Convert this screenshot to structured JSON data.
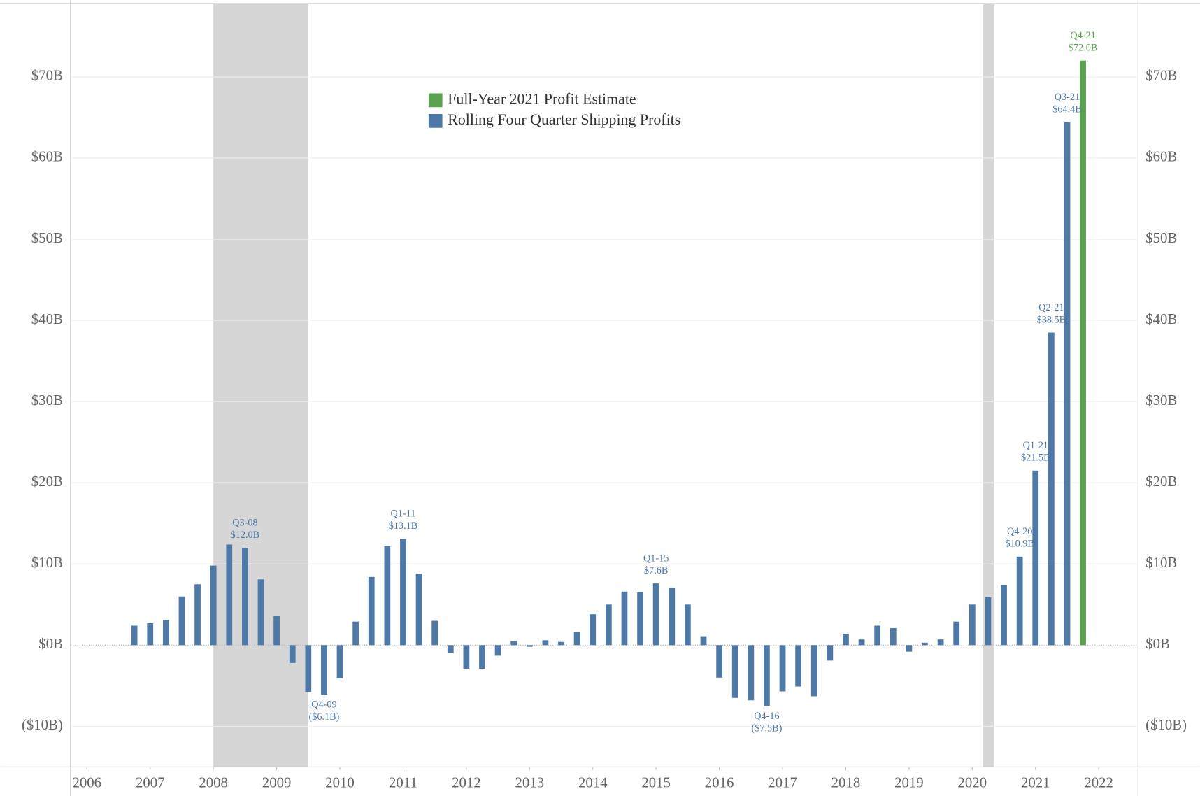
{
  "chart_data": {
    "type": "bar",
    "xlim": [
      2005.74,
      2022.62
    ],
    "ylim": [
      -15,
      79
    ],
    "xticks": [
      2006,
      2007,
      2008,
      2009,
      2010,
      2011,
      2012,
      2013,
      2014,
      2015,
      2016,
      2017,
      2018,
      2019,
      2020,
      2021,
      2022
    ],
    "yticks": [
      {
        "value": -10,
        "label": "($10B)"
      },
      {
        "value": 0,
        "label": "$0B"
      },
      {
        "value": 10,
        "label": "$10B"
      },
      {
        "value": 20,
        "label": "$20B"
      },
      {
        "value": 30,
        "label": "$30B"
      },
      {
        "value": 40,
        "label": "$40B"
      },
      {
        "value": 50,
        "label": "$50B"
      },
      {
        "value": 60,
        "label": "$60B"
      },
      {
        "value": 70,
        "label": "$70B"
      }
    ],
    "grid": true,
    "shaded_ranges": [
      [
        2008,
        2009.5
      ],
      [
        2020.17,
        2020.35
      ]
    ],
    "series": [
      {
        "name": "Full-Year 2021 Profit Estimate",
        "color": "#59a14f",
        "x": [
          2021.75
        ],
        "values": [
          72.0
        ],
        "point_labels": [
          "Q4-21"
        ],
        "value_labels": [
          "$72.0B"
        ]
      },
      {
        "name": "Rolling Four Quarter Shipping Profits",
        "color": "#4e79a7",
        "x": [
          2006.75,
          2007,
          2007.25,
          2007.5,
          2007.75,
          2008,
          2008.25,
          2008.5,
          2008.75,
          2009,
          2009.25,
          2009.5,
          2009.75,
          2010,
          2010.25,
          2010.5,
          2010.75,
          2011,
          2011.25,
          2011.5,
          2011.75,
          2012,
          2012.25,
          2012.5,
          2012.75,
          2013,
          2013.25,
          2013.5,
          2013.75,
          2014,
          2014.25,
          2014.5,
          2014.75,
          2015,
          2015.25,
          2015.5,
          2015.75,
          2016,
          2016.25,
          2016.5,
          2016.75,
          2017,
          2017.25,
          2017.5,
          2017.75,
          2018,
          2018.25,
          2018.5,
          2018.75,
          2019,
          2019.25,
          2019.5,
          2019.75,
          2020,
          2020.25,
          2020.5,
          2020.75,
          2021,
          2021.25,
          2021.5
        ],
        "values": [
          2.4,
          2.7,
          3.1,
          6.0,
          7.5,
          9.8,
          12.4,
          12.0,
          8.1,
          3.6,
          -2.2,
          -5.8,
          -6.1,
          -4.1,
          2.9,
          8.4,
          12.2,
          13.1,
          8.8,
          3.0,
          -1.0,
          -2.9,
          -2.9,
          -1.3,
          0.5,
          -0.2,
          0.6,
          0.4,
          1.6,
          3.8,
          5.0,
          6.6,
          6.5,
          7.6,
          7.1,
          5.0,
          1.1,
          -4.0,
          -6.5,
          -6.8,
          -7.5,
          -5.7,
          -5.1,
          -6.3,
          -1.9,
          1.4,
          0.7,
          2.4,
          2.1,
          -0.8,
          0.3,
          0.7,
          2.9,
          5.0,
          5.9,
          7.4,
          10.9,
          21.5,
          38.5,
          64.4
        ],
        "point_labels": [
          null,
          null,
          null,
          null,
          null,
          null,
          null,
          "Q3-08",
          null,
          null,
          null,
          null,
          "Q4-09",
          null,
          null,
          null,
          null,
          "Q1-11",
          null,
          null,
          null,
          null,
          null,
          null,
          null,
          null,
          null,
          null,
          null,
          null,
          null,
          null,
          null,
          "Q1-15",
          null,
          null,
          null,
          null,
          null,
          null,
          "Q4-16",
          null,
          null,
          null,
          null,
          null,
          null,
          null,
          null,
          null,
          null,
          null,
          null,
          null,
          null,
          null,
          "Q4-20",
          "Q1-21",
          "Q2-21",
          "Q3-21"
        ],
        "value_labels": [
          null,
          null,
          null,
          null,
          null,
          null,
          null,
          "$12.0B",
          null,
          null,
          null,
          null,
          "($6.1B)",
          null,
          null,
          null,
          null,
          "$13.1B",
          null,
          null,
          null,
          null,
          null,
          null,
          null,
          null,
          null,
          null,
          null,
          null,
          null,
          null,
          null,
          "$7.6B",
          null,
          null,
          null,
          null,
          null,
          null,
          "($7.5B)",
          null,
          null,
          null,
          null,
          null,
          null,
          null,
          null,
          null,
          null,
          null,
          null,
          null,
          null,
          null,
          "$10.9B",
          "$21.5B",
          "$38.5B",
          "$64.4B"
        ]
      }
    ]
  }
}
